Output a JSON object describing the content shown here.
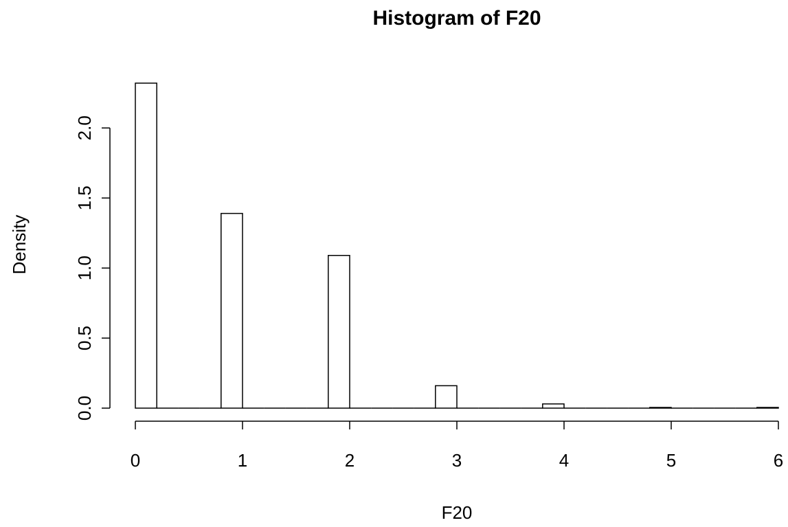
{
  "chart_data": {
    "type": "histogram",
    "title": "Histogram of F20",
    "x_label": "F20",
    "y_label": "Density",
    "bins": [
      0,
      0.2,
      0.4,
      0.6,
      0.8,
      1.0,
      1.2,
      1.4,
      1.6,
      1.8,
      2.0,
      2.2,
      2.4,
      2.6,
      2.8,
      3.0,
      3.2,
      3.4,
      3.6,
      3.8,
      4.0,
      4.2,
      4.4,
      4.6,
      4.8,
      5.0,
      5.2,
      5.4,
      5.6,
      5.8,
      6.0
    ],
    "values": [
      2.32,
      0,
      0,
      0,
      1.39,
      0,
      0,
      0,
      0,
      1.09,
      0,
      0,
      0,
      0,
      0.16,
      0,
      0,
      0,
      0,
      0.03,
      0,
      0,
      0,
      0,
      0.005,
      0,
      0,
      0,
      0,
      0.005
    ],
    "color": "#ffffff",
    "xlim": [
      0,
      6
    ],
    "xticks": [
      0,
      1,
      2,
      3,
      4,
      5,
      6
    ],
    "ylim": [
      0,
      2.32
    ],
    "yticks": [
      {
        "value": 0,
        "label": "0.0"
      },
      0.5,
      {
        "value": 1,
        "label": "1.0"
      },
      1.5,
      {
        "value": 2,
        "label": "2.0"
      }
    ],
    "grid": false
  }
}
